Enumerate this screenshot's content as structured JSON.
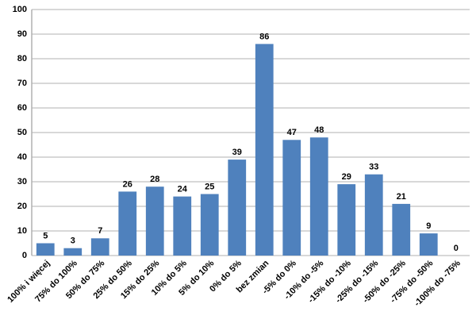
{
  "chart_data": {
    "type": "bar",
    "categories": [
      "100% i więcej",
      "75% do 100%",
      "50% do 75%",
      "25% do 50%",
      "15% do 25%",
      "10% do 5%",
      "5% do 10%",
      "0% do 5%",
      "bez zmian",
      "-5% do 0%",
      "-10% do -5%",
      "-15% do -10%",
      "-25% do -15%",
      "-50% do -25%",
      "-75% do -50%",
      "-100% do -75%"
    ],
    "values": [
      5,
      3,
      7,
      26,
      28,
      24,
      25,
      39,
      86,
      47,
      48,
      29,
      33,
      21,
      9,
      0
    ],
    "color": "#4f81bd",
    "ylim": [
      0,
      100
    ],
    "yticks": [
      0,
      10,
      20,
      30,
      40,
      50,
      60,
      70,
      80,
      90,
      100
    ],
    "grid": true
  }
}
